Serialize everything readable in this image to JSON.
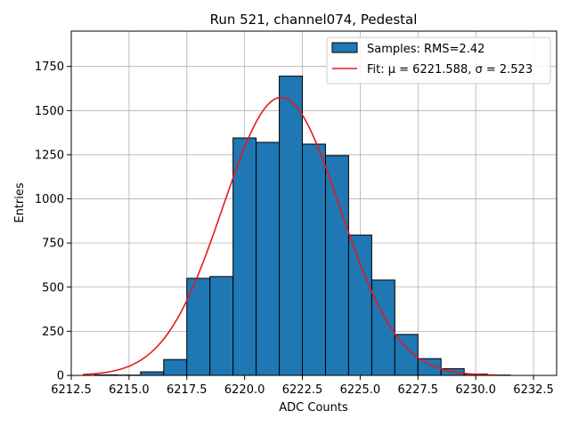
{
  "chart_data": {
    "type": "bar",
    "title": "Run 521, channel074, Pedestal",
    "xlabel": "ADC Counts",
    "ylabel": "Entries",
    "xlim": [
      6212.5,
      6233.5
    ],
    "ylim": [
      0,
      1950
    ],
    "xticks": [
      6212.5,
      6215.0,
      6217.5,
      6220.0,
      6222.5,
      6225.0,
      6227.5,
      6230.0,
      6232.5
    ],
    "xtick_labels": [
      "6212.5",
      "6215.0",
      "6217.5",
      "6220.0",
      "6222.5",
      "6225.0",
      "6227.5",
      "6230.0",
      "6232.5"
    ],
    "yticks": [
      0,
      250,
      500,
      750,
      1000,
      1250,
      1500,
      1750
    ],
    "ytick_labels": [
      "0",
      "250",
      "500",
      "750",
      "1000",
      "1250",
      "1500",
      "1750"
    ],
    "grid": true,
    "legend_position": "top-right",
    "bin_width": 1,
    "bins": [
      {
        "x": 6214,
        "value": 3
      },
      {
        "x": 6215,
        "value": 2
      },
      {
        "x": 6216,
        "value": 20
      },
      {
        "x": 6217,
        "value": 90
      },
      {
        "x": 6218,
        "value": 550
      },
      {
        "x": 6219,
        "value": 560
      },
      {
        "x": 6220,
        "value": 1345
      },
      {
        "x": 6221,
        "value": 1320
      },
      {
        "x": 6222,
        "value": 1695
      },
      {
        "x": 6223,
        "value": 1310
      },
      {
        "x": 6224,
        "value": 1245
      },
      {
        "x": 6225,
        "value": 795
      },
      {
        "x": 6226,
        "value": 540
      },
      {
        "x": 6227,
        "value": 232
      },
      {
        "x": 6228,
        "value": 95
      },
      {
        "x": 6229,
        "value": 38
      },
      {
        "x": 6230,
        "value": 8
      },
      {
        "x": 6231,
        "value": 2
      }
    ],
    "series": [
      {
        "name": "Samples: RMS=2.42",
        "type": "bar"
      },
      {
        "name": "Fit: μ = 6221.588, σ = 2.523",
        "type": "line",
        "mu": 6221.588,
        "sigma": 2.523,
        "peak": 1575,
        "x_range": [
          6213,
          6231
        ]
      }
    ],
    "colors": {
      "bar": "#1f77b4",
      "fit": "#e41a1c"
    }
  }
}
